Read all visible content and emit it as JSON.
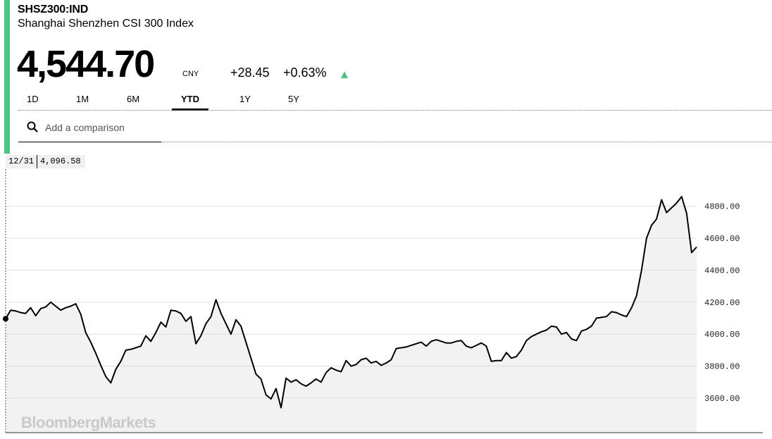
{
  "quote": {
    "ticker": "SHSZ300:IND",
    "name": "Shanghai Shenzhen CSI 300 Index",
    "price": "4,544.70",
    "currency": "CNY",
    "change": "+28.45",
    "change_pct": "+0.63%",
    "direction": "up"
  },
  "tabs": [
    {
      "label": "1D",
      "active": false
    },
    {
      "label": "1M",
      "active": false
    },
    {
      "label": "6M",
      "active": false
    },
    {
      "label": "YTD",
      "active": true
    },
    {
      "label": "1Y",
      "active": false
    },
    {
      "label": "5Y",
      "active": false
    }
  ],
  "compare": {
    "placeholder": "Add a comparison",
    "icon": "search-icon"
  },
  "tooltip": {
    "date": "12/31",
    "value": "4,096.58"
  },
  "watermark": "BloombergMarkets",
  "colors": {
    "accent": "#4dc281",
    "line": "#000000",
    "area": "#f2f2f2",
    "grid": "#dddddd"
  },
  "chart_data": {
    "type": "area",
    "title": "",
    "xlabel": "",
    "ylabel": "",
    "ylim": [
      3400,
      4950
    ],
    "yticks": [
      {
        "value": 3600,
        "label": "3600.00"
      },
      {
        "value": 3800,
        "label": "3800.00"
      },
      {
        "value": 4000,
        "label": "4000.00"
      },
      {
        "value": 4200,
        "label": "4200.00"
      },
      {
        "value": 4400,
        "label": "4400.00"
      },
      {
        "value": 4600,
        "label": "4600.00"
      },
      {
        "value": 4800,
        "label": "4800.00"
      }
    ],
    "axis_position": "right",
    "grid": true,
    "series": [
      {
        "values": [
          4096,
          4150,
          4145,
          4135,
          4130,
          4165,
          4115,
          4160,
          4170,
          4200,
          4175,
          4150,
          4165,
          4175,
          4190,
          4125,
          4010,
          3950,
          3880,
          3805,
          3735,
          3695,
          3780,
          3830,
          3900,
          3905,
          3915,
          3925,
          3990,
          3955,
          4010,
          4075,
          4045,
          4150,
          4145,
          4130,
          4080,
          4110,
          3940,
          3990,
          4065,
          4110,
          4215,
          4130,
          4065,
          4000,
          4090,
          4050,
          3950,
          3850,
          3750,
          3720,
          3620,
          3595,
          3660,
          3540,
          3725,
          3700,
          3715,
          3690,
          3675,
          3695,
          3720,
          3700,
          3760,
          3790,
          3775,
          3765,
          3835,
          3800,
          3810,
          3840,
          3850,
          3820,
          3830,
          3805,
          3820,
          3840,
          3910,
          3915,
          3920,
          3930,
          3940,
          3950,
          3925,
          3955,
          3965,
          3955,
          3945,
          3945,
          3955,
          3960,
          3925,
          3915,
          3930,
          3945,
          3925,
          3830,
          3835,
          3835,
          3885,
          3850,
          3860,
          3900,
          3960,
          3985,
          4000,
          4015,
          4025,
          4050,
          4045,
          4000,
          4010,
          3970,
          3960,
          4020,
          4030,
          4050,
          4100,
          4105,
          4110,
          4140,
          4135,
          4120,
          4110,
          4165,
          4240,
          4400,
          4600,
          4680,
          4720,
          4840,
          4760,
          4790,
          4820,
          4860,
          4755,
          4510,
          4545
        ]
      }
    ]
  }
}
